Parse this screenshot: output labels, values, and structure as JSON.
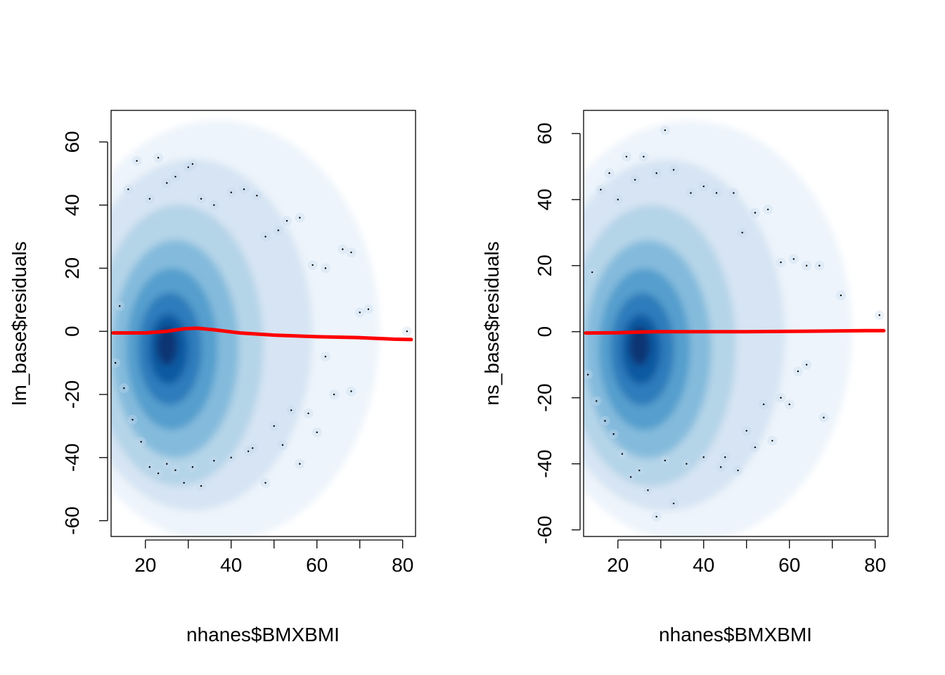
{
  "chart_data": [
    {
      "type": "scatter",
      "style": "smoothed-density-scatter",
      "title": "",
      "xlabel": "nhanes$BMXBMI",
      "ylabel": "lm_base$residuals",
      "xlim": [
        12,
        83
      ],
      "ylim": [
        -65,
        70
      ],
      "x_ticks": [
        "20",
        "40",
        "60",
        "80"
      ],
      "x_tick_values": [
        20,
        40,
        60,
        80
      ],
      "y_ticks": [
        "-60",
        "-40",
        "-20",
        "0",
        "20",
        "40",
        "60"
      ],
      "y_tick_values": [
        -60,
        -40,
        -20,
        0,
        20,
        40,
        60
      ],
      "density_center": {
        "x": 27,
        "y": 0
      },
      "density_color": "#08306B",
      "smoother_color": "#FF0000",
      "smoother": {
        "x": [
          12.5,
          20,
          25,
          29,
          32,
          36,
          42,
          50,
          60,
          70,
          78,
          82
        ],
        "y": [
          -0.5,
          -0.5,
          0,
          0.8,
          1,
          0.5,
          -0.5,
          -1.2,
          -1.7,
          -2,
          -2.5,
          -2.6
        ]
      },
      "outliers": {
        "x": [
          16,
          18,
          21,
          23,
          25,
          27,
          30,
          31,
          33,
          36,
          40,
          43,
          46,
          48,
          51,
          53,
          56,
          59,
          62,
          66,
          68,
          70,
          72,
          81,
          13,
          14,
          15,
          17,
          19,
          21,
          23,
          25,
          27,
          29,
          31,
          33,
          36,
          40,
          44,
          48,
          52,
          56,
          60,
          64,
          68,
          45,
          50,
          54,
          58,
          62
        ],
        "y": [
          45,
          54,
          42,
          55,
          47,
          49,
          52,
          53,
          42,
          40,
          44,
          45,
          43,
          30,
          32,
          35,
          36,
          21,
          20,
          26,
          25,
          6,
          7,
          0,
          -10,
          8,
          -18,
          -28,
          -35,
          -43,
          -45,
          -42,
          -44,
          -48,
          -43,
          -49,
          -41,
          -40,
          -38,
          -48,
          -36,
          -42,
          -32,
          -20,
          -19,
          -37,
          -30,
          -25,
          -26,
          -8
        ]
      }
    },
    {
      "type": "scatter",
      "style": "smoothed-density-scatter",
      "title": "",
      "xlabel": "nhanes$BMXBMI",
      "ylabel": "ns_base$residuals",
      "xlim": [
        12,
        83
      ],
      "ylim": [
        -62,
        67
      ],
      "x_ticks": [
        "20",
        "40",
        "60",
        "80"
      ],
      "x_tick_values": [
        20,
        40,
        60,
        80
      ],
      "y_ticks": [
        "-60",
        "-40",
        "-20",
        "0",
        "20",
        "40",
        "60"
      ],
      "y_tick_values": [
        -60,
        -40,
        -20,
        0,
        20,
        40,
        60
      ],
      "density_center": {
        "x": 27,
        "y": 0
      },
      "density_color": "#08306B",
      "smoother_color": "#FF0000",
      "smoother": {
        "x": [
          12.5,
          20,
          25,
          29,
          35,
          42,
          50,
          60,
          70,
          78,
          82
        ],
        "y": [
          -0.4,
          -0.3,
          -0.1,
          0,
          0,
          0,
          0,
          0.1,
          0.2,
          0.3,
          0.3
        ]
      },
      "outliers": {
        "x": [
          16,
          18,
          20,
          22,
          24,
          26,
          29,
          31,
          33,
          37,
          40,
          43,
          47,
          49,
          52,
          55,
          58,
          61,
          64,
          67,
          72,
          81,
          13,
          14,
          15,
          17,
          19,
          21,
          23,
          25,
          27,
          29,
          31,
          33,
          36,
          40,
          44,
          48,
          52,
          56,
          60,
          64,
          68,
          45,
          50,
          54,
          58,
          62
        ],
        "y": [
          43,
          48,
          40,
          53,
          46,
          53,
          48,
          61,
          49,
          42,
          44,
          42,
          42,
          30,
          36,
          37,
          21,
          22,
          20,
          20,
          11,
          5,
          -13,
          18,
          -21,
          -27,
          -31,
          -37,
          -44,
          -42,
          -48,
          -56,
          -39,
          -52,
          -40,
          -38,
          -41,
          -42,
          -35,
          -33,
          -22,
          -10,
          -26,
          -38,
          -30,
          -22,
          -20,
          -12
        ]
      }
    }
  ]
}
